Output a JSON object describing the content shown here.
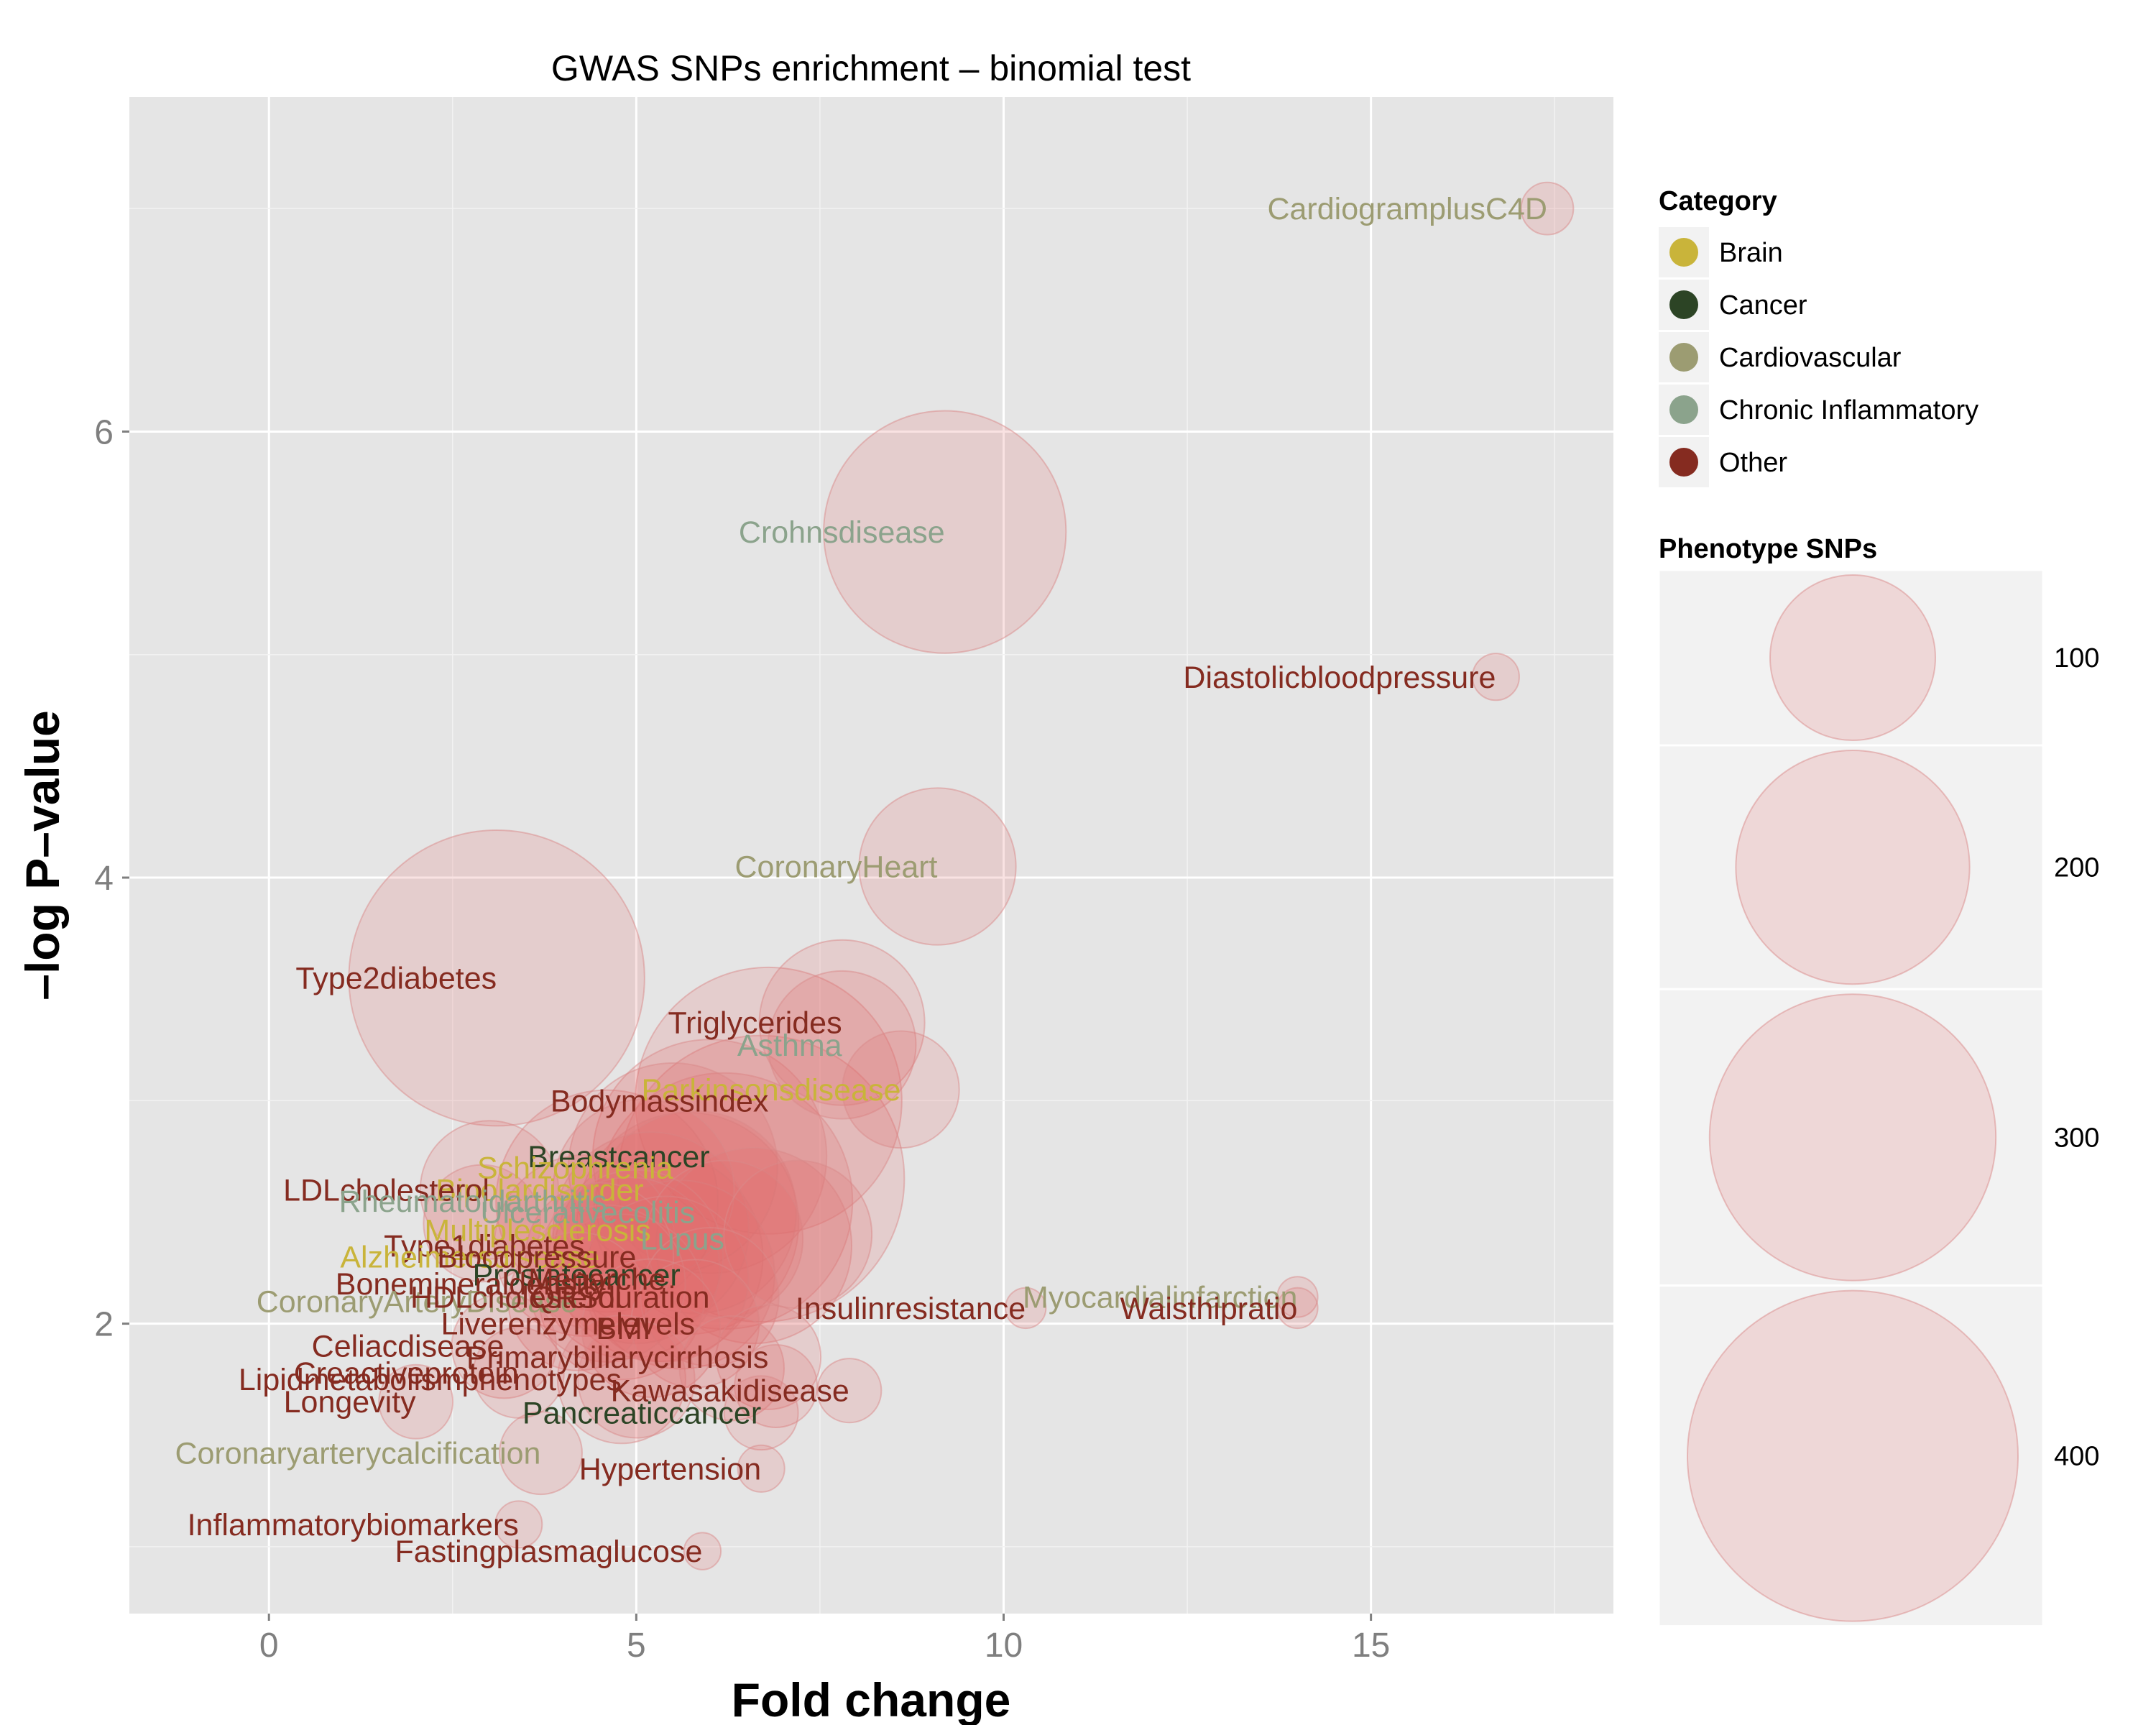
{
  "colors": {
    "panel_bg": "#e5e5e5",
    "grid_major": "#ffffff",
    "grid_minor": "#f2f2f2",
    "bubble_fill": "#e36c6c",
    "bubble_stroke": "#d98a8a",
    "tick_text": "#7f7f7f"
  },
  "chart_data": {
    "type": "scatter",
    "title": "GWAS SNPs enrichment – binomial test",
    "xlabel": "Fold change",
    "ylabel": "–log P–value",
    "xlim": [
      -1.9,
      18.3
    ],
    "ylim": [
      0.7,
      7.5
    ],
    "xticks": [
      0,
      5,
      10,
      15
    ],
    "yticks": [
      2,
      4,
      6
    ],
    "grid": true,
    "legend_position": "right",
    "categories": [
      {
        "name": "Brain",
        "color": "#c9b43a"
      },
      {
        "name": "Cancer",
        "color": "#2c4425"
      },
      {
        "name": "Cardiovascular",
        "color": "#9c9c72"
      },
      {
        "name": "Chronic Inflammatory",
        "color": "#8ba38c"
      },
      {
        "name": "Other",
        "color": "#852b20"
      }
    ],
    "size_legend": {
      "title": "Phenotype SNPs",
      "values": [
        100,
        200,
        300,
        400
      ]
    },
    "points": [
      {
        "label": "CardiogramplusC4D",
        "category": "Cardiovascular",
        "x": 17.4,
        "y": 7.0,
        "snps": 10
      },
      {
        "label": "Crohnsdisease",
        "category": "Chronic Inflammatory",
        "x": 9.2,
        "y": 5.55,
        "snps": 215
      },
      {
        "label": "Diastolicbloodpressure",
        "category": "Other",
        "x": 16.7,
        "y": 4.9,
        "snps": 8
      },
      {
        "label": "CoronaryHeart",
        "category": "Cardiovascular",
        "x": 9.1,
        "y": 4.05,
        "snps": 90
      },
      {
        "label": "Type2diabetes",
        "category": "Other",
        "x": 3.1,
        "y": 3.55,
        "snps": 320
      },
      {
        "label": "Triglycerides",
        "category": "Other",
        "x": 7.8,
        "y": 3.35,
        "snps": 100
      },
      {
        "label": "Asthma",
        "category": "Chronic Inflammatory",
        "x": 7.8,
        "y": 3.25,
        "snps": 80
      },
      {
        "label": "Parkinsonsdisease",
        "category": "Brain",
        "x": 8.6,
        "y": 3.05,
        "snps": 50
      },
      {
        "label": "Bodymassindex",
        "category": "Other",
        "x": 6.8,
        "y": 3.0,
        "snps": 260
      },
      {
        "label": "Breastcancer",
        "category": "Cancer",
        "x": 6.0,
        "y": 2.75,
        "snps": 200
      },
      {
        "label": "Schizophrenia",
        "category": "Brain",
        "x": 5.5,
        "y": 2.7,
        "snps": 160
      },
      {
        "label": "Bipolardisorder",
        "category": "Brain",
        "x": 5.1,
        "y": 2.6,
        "snps": 120
      },
      {
        "label": "LDLcholesterol",
        "category": "Other",
        "x": 3.0,
        "y": 2.6,
        "snps": 70
      },
      {
        "label": "Rheumatoidarthritis",
        "category": "Chronic Inflammatory",
        "x": 4.6,
        "y": 2.55,
        "snps": 180
      },
      {
        "label": "Ulcerativecolitis",
        "category": "Chronic Inflammatory",
        "x": 5.8,
        "y": 2.5,
        "snps": 150
      },
      {
        "label": "Multiplesclerosis",
        "category": "Brain",
        "x": 5.2,
        "y": 2.42,
        "snps": 140
      },
      {
        "label": "Lupus",
        "category": "Chronic Inflammatory",
        "x": 6.2,
        "y": 2.38,
        "snps": 90
      },
      {
        "label": "Type1diabetes",
        "category": "Other",
        "x": 4.3,
        "y": 2.35,
        "snps": 120
      },
      {
        "label": "Alzheimersdisease",
        "category": "Brain",
        "x": 4.5,
        "y": 2.3,
        "snps": 80
      },
      {
        "label": "Bloodpressure",
        "category": "Other",
        "x": 5.0,
        "y": 2.3,
        "snps": 110
      },
      {
        "label": "Prostatecancer",
        "category": "Cancer",
        "x": 5.6,
        "y": 2.22,
        "snps": 130
      },
      {
        "label": "Menarche",
        "category": "Other",
        "x": 5.4,
        "y": 2.2,
        "snps": 100
      },
      {
        "label": "Bonemineraldensity",
        "category": "Other",
        "x": 4.6,
        "y": 2.18,
        "snps": 90
      },
      {
        "label": "CoronaryArteryDisease",
        "category": "Cardiovascular",
        "x": 4.2,
        "y": 2.1,
        "snps": 70
      },
      {
        "label": "HDLcholesterol",
        "category": "Other",
        "x": 4.8,
        "y": 2.12,
        "snps": 100
      },
      {
        "label": "QRSduration",
        "category": "Other",
        "x": 6.0,
        "y": 2.12,
        "snps": 70
      },
      {
        "label": "Insulinresistance",
        "category": "Other",
        "x": 10.3,
        "y": 2.07,
        "snps": 6
      },
      {
        "label": "Myocardialinfarction",
        "category": "Cardiovascular",
        "x": 14.0,
        "y": 2.12,
        "snps": 6
      },
      {
        "label": "Waisthipratio",
        "category": "Other",
        "x": 14.0,
        "y": 2.07,
        "snps": 6
      },
      {
        "label": "Liverenzymelevels",
        "category": "Other",
        "x": 5.8,
        "y": 2.0,
        "snps": 60
      },
      {
        "label": "BMI",
        "category": "Other",
        "x": 5.2,
        "y": 1.98,
        "snps": 70
      },
      {
        "label": "Celiacdisease",
        "category": "Other",
        "x": 3.2,
        "y": 1.9,
        "snps": 40
      },
      {
        "label": "Primarybiliarycirrhosis",
        "category": "Other",
        "x": 6.8,
        "y": 1.85,
        "snps": 40
      },
      {
        "label": "Creactiveprotein",
        "category": "Other",
        "x": 3.4,
        "y": 1.78,
        "snps": 30
      },
      {
        "label": "Lipidmetabolismphenotypes",
        "category": "Other",
        "x": 4.8,
        "y": 1.75,
        "snps": 60
      },
      {
        "label": "Kawasakidisease",
        "category": "Other",
        "x": 7.9,
        "y": 1.7,
        "snps": 15
      },
      {
        "label": "Longevity",
        "category": "Other",
        "x": 2.0,
        "y": 1.65,
        "snps": 20
      },
      {
        "label": "Pancreaticcancer",
        "category": "Cancer",
        "x": 6.7,
        "y": 1.6,
        "snps": 20
      },
      {
        "label": "Coronaryarterycalcification",
        "category": "Cardiovascular",
        "x": 3.7,
        "y": 1.42,
        "snps": 25
      },
      {
        "label": "Hypertension",
        "category": "Other",
        "x": 6.7,
        "y": 1.35,
        "snps": 8
      },
      {
        "label": "Inflammatorybiomarkers",
        "category": "Other",
        "x": 3.4,
        "y": 1.1,
        "snps": 8
      },
      {
        "label": "Fastingplasmaglucose",
        "category": "Other",
        "x": 5.9,
        "y": 0.98,
        "snps": 5
      }
    ],
    "extra_bubbles": [
      {
        "x": 6.7,
        "y": 2.65,
        "snps": 300
      },
      {
        "x": 6.2,
        "y": 2.55,
        "snps": 240
      },
      {
        "x": 5.7,
        "y": 2.45,
        "snps": 180
      },
      {
        "x": 6.6,
        "y": 2.35,
        "snps": 140
      },
      {
        "x": 5.3,
        "y": 2.3,
        "snps": 160
      },
      {
        "x": 4.9,
        "y": 2.25,
        "snps": 120
      },
      {
        "x": 7.2,
        "y": 2.4,
        "snps": 80
      },
      {
        "x": 5.0,
        "y": 1.75,
        "snps": 50
      },
      {
        "x": 6.3,
        "y": 1.8,
        "snps": 40
      },
      {
        "x": 6.9,
        "y": 1.72,
        "snps": 25
      },
      {
        "x": 2.9,
        "y": 2.45,
        "snps": 50
      }
    ]
  }
}
